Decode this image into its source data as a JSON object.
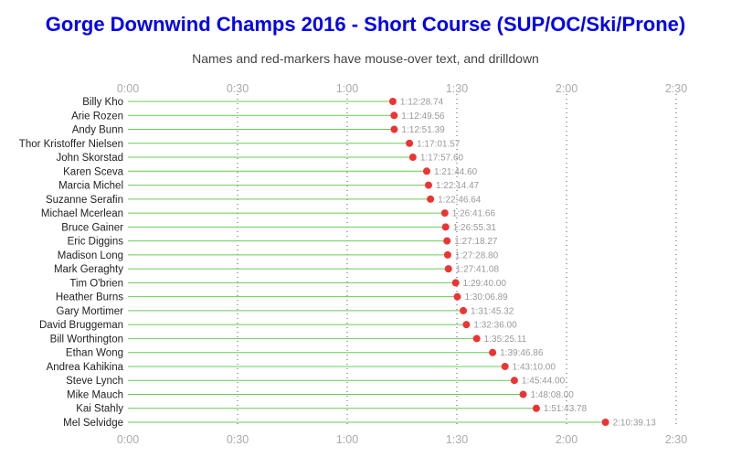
{
  "colors": {
    "title": "#0000ee",
    "stem": "#66cc55",
    "marker": "#ee3333",
    "grid": "#555555"
  },
  "chart_data": {
    "type": "lollipop",
    "title": "Gorge Downwind Champs 2016 - Short Course (SUP/OC/Ski/Prone)",
    "subtitle": "Names and red-markers have mouse-over text, and drilldown",
    "x_axis": {
      "unit": "minutes",
      "range": [
        0,
        150
      ],
      "ticks": [
        0,
        30,
        60,
        90,
        120,
        150
      ],
      "tick_labels": [
        "0:00",
        "0:30",
        "1:00",
        "1:30",
        "2:00",
        "2:30"
      ],
      "position": "top-and-bottom"
    },
    "grid": true,
    "entries": [
      {
        "name": "Billy Kho",
        "time": "1:12:28.74",
        "minutes": 72.479
      },
      {
        "name": "Arie Rozen",
        "time": "1:12:49.56",
        "minutes": 72.826
      },
      {
        "name": "Andy Bunn",
        "time": "1:12:51.39",
        "minutes": 72.857
      },
      {
        "name": "Thor Kristoffer Nielsen",
        "time": "1:17:01.57",
        "minutes": 77.026
      },
      {
        "name": "John Skorstad",
        "time": "1:17:57.60",
        "minutes": 77.96
      },
      {
        "name": "Karen Sceva",
        "time": "1:21:44.60",
        "minutes": 81.743
      },
      {
        "name": "Marcia Michel",
        "time": "1:22:14.47",
        "minutes": 82.241
      },
      {
        "name": "Suzanne Serafin",
        "time": "1:22:46.64",
        "minutes": 82.777
      },
      {
        "name": "Michael Mcerlean",
        "time": "1:26:41.66",
        "minutes": 86.694
      },
      {
        "name": "Bruce Gainer",
        "time": "1:26:55.31",
        "minutes": 86.922
      },
      {
        "name": "Eric Diggins",
        "time": "1:27:18.27",
        "minutes": 87.305
      },
      {
        "name": "Madison Long",
        "time": "1:27:28.80",
        "minutes": 87.48
      },
      {
        "name": "Mark Geraghty",
        "time": "1:27:41.08",
        "minutes": 87.685
      },
      {
        "name": "Tim O'brien",
        "time": "1:29:40.00",
        "minutes": 89.667
      },
      {
        "name": "Heather Burns",
        "time": "1:30:06.89",
        "minutes": 90.115
      },
      {
        "name": "Gary Mortimer",
        "time": "1:31:45.32",
        "minutes": 91.755
      },
      {
        "name": "David Bruggeman",
        "time": "1:32:36.00",
        "minutes": 92.6
      },
      {
        "name": "Bill Worthington",
        "time": "1:35:25.11",
        "minutes": 95.419
      },
      {
        "name": "Ethan Wong",
        "time": "1:39:46.86",
        "minutes": 99.781
      },
      {
        "name": "Andrea Kahikina",
        "time": "1:43:10.00",
        "minutes": 103.167
      },
      {
        "name": "Steve Lynch",
        "time": "1:45:44.00",
        "minutes": 105.733
      },
      {
        "name": "Mike Mauch",
        "time": "1:48:08.00",
        "minutes": 108.133
      },
      {
        "name": "Kai Stahly",
        "time": "1:51:43.78",
        "minutes": 111.73
      },
      {
        "name": "Mel Selvidge",
        "time": "2:10:39.13",
        "minutes": 130.652
      }
    ]
  }
}
